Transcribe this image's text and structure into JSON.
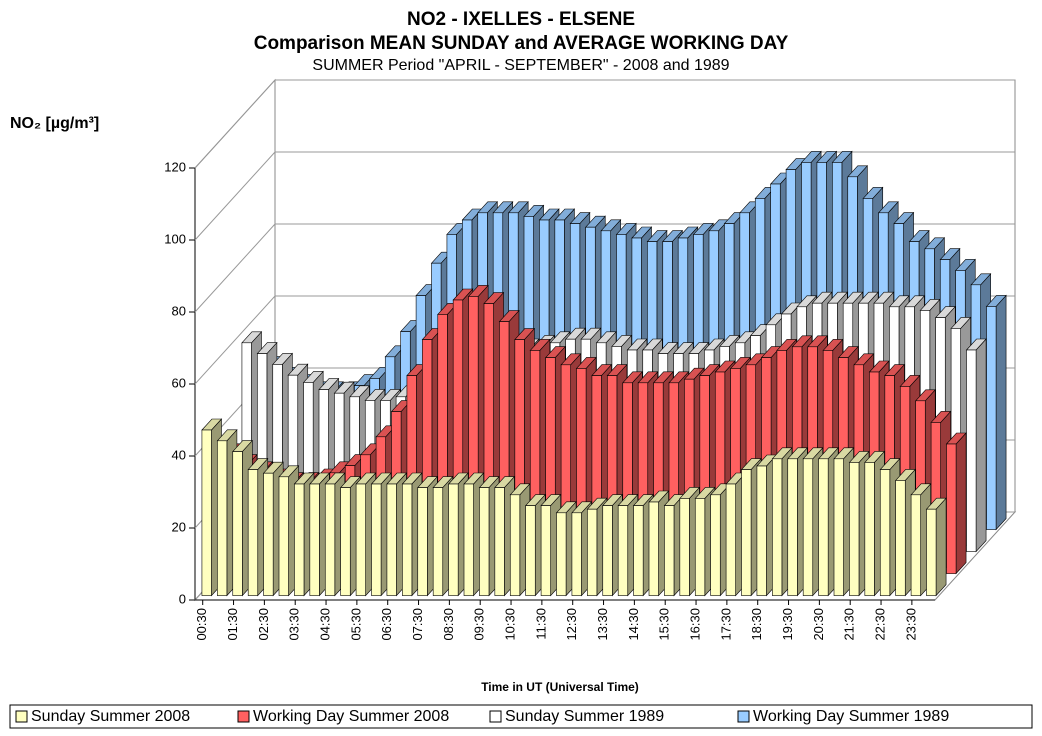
{
  "chart_data": {
    "type": "bar3d",
    "title": "NO2 - IXELLES -  ELSENE",
    "subtitle": "Comparison MEAN SUNDAY and AVERAGE WORKING DAY",
    "subtitle2": "SUMMER Period \"APRIL - SEPTEMBER\" - 2008 and 1989",
    "y_label": "NO₂  [µg/m³]",
    "x_label": "Time in UT (Universal Time)",
    "categories": [
      "00:30",
      null,
      "01:30",
      null,
      "02:30",
      null,
      "03:30",
      null,
      "04:30",
      null,
      "05:30",
      null,
      "06:30",
      null,
      "07:30",
      null,
      "08:30",
      null,
      "09:30",
      null,
      "10:30",
      null,
      "11:30",
      null,
      "12:30",
      null,
      "13:30",
      null,
      "14:30",
      null,
      "15:30",
      null,
      "16:30",
      null,
      "17:30",
      null,
      "18:30",
      null,
      "19:30",
      null,
      "20:30",
      null,
      "21:30",
      null,
      "22:30",
      null,
      "23:30",
      null
    ],
    "series": [
      {
        "name": "Sunday Summer 2008",
        "color": "#ffffc0",
        "values": [
          46,
          43,
          40,
          35,
          34,
          33,
          31,
          31,
          31,
          30,
          31,
          31,
          31,
          31,
          30,
          30,
          31,
          31,
          30,
          30,
          28,
          25,
          25,
          23,
          23,
          24,
          25,
          25,
          25,
          26,
          25,
          27,
          27,
          28,
          31,
          35,
          36,
          38,
          38,
          38,
          38,
          38,
          37,
          37,
          35,
          32,
          28,
          24
        ]
      },
      {
        "name": "Working Day Summer 2008",
        "color": "#ff6060",
        "values": [
          33,
          30,
          28,
          26,
          25,
          25,
          26,
          28,
          30,
          33,
          38,
          45,
          55,
          65,
          72,
          76,
          77,
          75,
          70,
          65,
          62,
          60,
          58,
          57,
          55,
          55,
          53,
          53,
          53,
          53,
          54,
          55,
          56,
          57,
          58,
          60,
          62,
          63,
          63,
          62,
          60,
          58,
          56,
          55,
          52,
          48,
          42,
          36
        ]
      },
      {
        "name": "Sunday Summer 1989",
        "color": "#ffffff",
        "values": [
          58,
          55,
          52,
          49,
          47,
          45,
          44,
          43,
          42,
          42,
          43,
          44,
          45,
          46,
          48,
          50,
          52,
          54,
          56,
          57,
          58,
          59,
          59,
          58,
          57,
          56,
          56,
          55,
          55,
          55,
          56,
          57,
          58,
          60,
          63,
          66,
          68,
          69,
          69,
          69,
          69,
          69,
          68,
          68,
          67,
          65,
          62,
          56
        ]
      },
      {
        "name": "Working Day Summer 1989",
        "color": "#99ccff",
        "values": [
          45,
          42,
          40,
          38,
          38,
          38,
          40,
          42,
          48,
          55,
          65,
          74,
          82,
          86,
          88,
          88,
          88,
          87,
          86,
          86,
          85,
          84,
          83,
          82,
          81,
          80,
          80,
          81,
          82,
          83,
          85,
          88,
          92,
          96,
          100,
          102,
          102,
          102,
          98,
          92,
          88,
          85,
          80,
          78,
          75,
          72,
          68,
          62
        ]
      }
    ],
    "ylim": [
      0,
      120
    ],
    "yticks": [
      0,
      20,
      40,
      60,
      80,
      100,
      120
    ],
    "grid": true,
    "legend": "bottom"
  }
}
